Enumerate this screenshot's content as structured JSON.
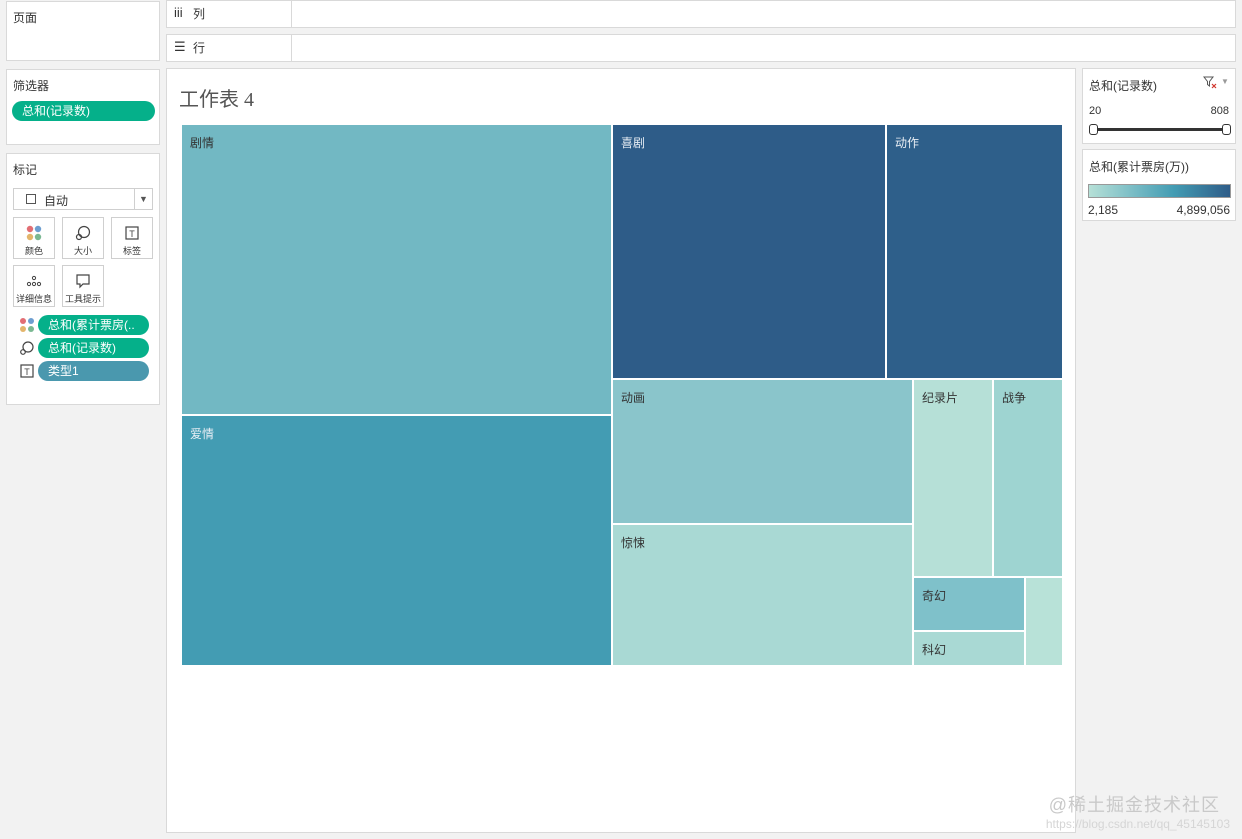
{
  "pages_panel": {
    "title": "页面"
  },
  "filters_panel": {
    "title": "筛选器",
    "pills": [
      {
        "label": "总和(记录数)"
      }
    ]
  },
  "marks_panel": {
    "title": "标记",
    "mark_type": "自动",
    "buttons": [
      {
        "label": "颜色",
        "icon": "color-dots-icon"
      },
      {
        "label": "大小",
        "icon": "size-icon"
      },
      {
        "label": "标签",
        "icon": "label-icon"
      },
      {
        "label": "详细信息",
        "icon": "detail-icon"
      },
      {
        "label": "工具提示",
        "icon": "tooltip-icon"
      }
    ],
    "pills": [
      {
        "label": "总和(累计票房(..",
        "icon": "color-dots-icon"
      },
      {
        "label": "总和(记录数)",
        "icon": "size-icon"
      },
      {
        "label": "类型1",
        "icon": "label-icon"
      }
    ]
  },
  "shelves": {
    "columns": "列",
    "rows": "行"
  },
  "sheet": {
    "title": "工作表 4"
  },
  "chart_data": {
    "type": "treemap",
    "size_measure": "总和(记录数)",
    "color_measure": "总和(累计票房(万))",
    "tiles": [
      {
        "label": "剧情",
        "color": "#72b8c3"
      },
      {
        "label": "爱情",
        "color": "#439cb3"
      },
      {
        "label": "喜剧",
        "color": "#2e5c88"
      },
      {
        "label": "动作",
        "color": "#2e5f8a"
      },
      {
        "label": "动画",
        "color": "#8ac5cb"
      },
      {
        "label": "惊悚",
        "color": "#a9d9d4"
      },
      {
        "label": "纪录片",
        "color": "#b6e0d7"
      },
      {
        "label": "战争",
        "color": "#9ed4d1"
      },
      {
        "label": "奇幻",
        "color": "#7fc1ca"
      },
      {
        "label": "科幻",
        "color": "#a9d9d4"
      },
      {
        "label": "",
        "color": "#b8e2d8"
      }
    ]
  },
  "legend_filter": {
    "title": "总和(记录数)",
    "min": "20",
    "max": "808"
  },
  "legend_color": {
    "title": "总和(累计票房(万))",
    "min": "2,185",
    "max": "4,899,056",
    "color_low": "#b6e0d7",
    "color_high": "#2e5c88"
  },
  "watermark": {
    "main": "@稀土掘金技术社区",
    "sub": "https://blog.csdn.net/qq_45145103"
  }
}
